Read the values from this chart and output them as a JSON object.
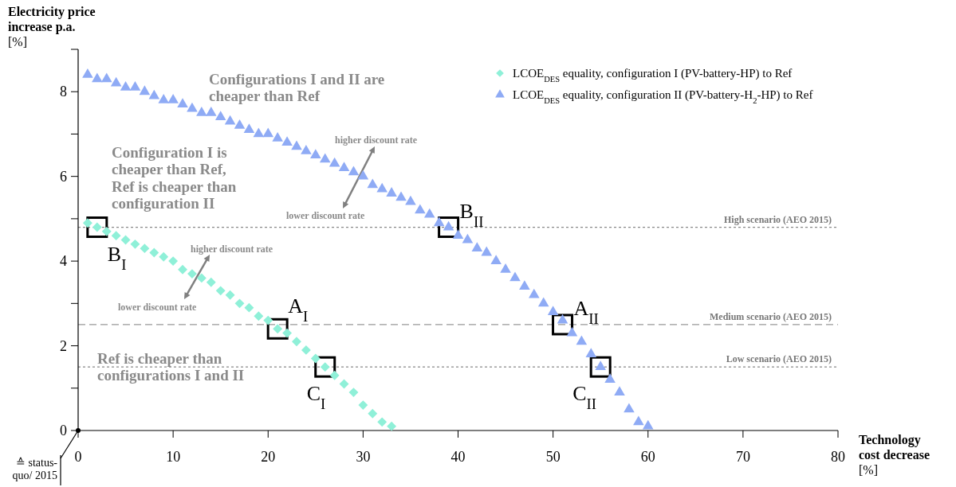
{
  "chart_data": {
    "type": "scatter",
    "xlabel": "Technology cost decrease [%]",
    "ylabel": "Electricity price increase p.a. [%]",
    "xlim": [
      0,
      80
    ],
    "xticks": [
      0,
      10,
      20,
      30,
      40,
      50,
      60,
      70,
      80
    ],
    "ylim": [
      0,
      9
    ],
    "yticks": [
      0,
      {
        "value": 1,
        "label": null
      },
      2,
      {
        "value": 3,
        "label": null
      },
      4,
      {
        "value": 5,
        "label": null
      },
      6,
      {
        "value": 7,
        "label": null
      },
      8,
      {
        "value": 9,
        "label": null
      }
    ],
    "grid": false,
    "legend": "top right",
    "series": [
      {
        "name": "LCOE$_{DES}$ equality, configuration I (PV-battery-HP) to Ref",
        "color": "#8ff0d8",
        "marker": "diamond",
        "x": [
          1,
          2,
          3,
          4,
          5,
          6,
          7,
          8,
          9,
          10,
          11,
          12,
          13,
          14,
          15,
          16,
          17,
          18,
          19,
          20,
          21,
          22,
          23,
          24,
          25,
          26,
          27,
          28,
          29,
          30,
          31,
          32,
          33
        ],
        "values": [
          4.9,
          4.8,
          4.7,
          4.6,
          4.5,
          4.4,
          4.3,
          4.2,
          4.1,
          4.0,
          3.8,
          3.7,
          3.6,
          3.5,
          3.3,
          3.2,
          3.0,
          2.9,
          2.7,
          2.6,
          2.4,
          2.3,
          2.1,
          1.9,
          1.7,
          1.5,
          1.3,
          1.1,
          0.9,
          0.6,
          0.4,
          0.2,
          0.1
        ]
      },
      {
        "name": "LCOE$_{DES}$ equality, configuration II (PV-battery-H$_{2}$-HP) to Ref",
        "color": "#8fabf5",
        "marker": "triangle",
        "x": [
          1,
          2,
          3,
          4,
          5,
          6,
          7,
          8,
          9,
          10,
          11,
          12,
          13,
          14,
          15,
          16,
          17,
          18,
          19,
          20,
          21,
          22,
          23,
          24,
          25,
          26,
          27,
          28,
          29,
          30,
          31,
          32,
          33,
          34,
          35,
          36,
          37,
          38,
          39,
          40,
          41,
          42,
          43,
          44,
          45,
          46,
          47,
          48,
          49,
          50,
          51,
          52,
          53,
          54,
          55,
          56,
          57,
          58,
          59,
          60
        ],
        "values": [
          8.4,
          8.3,
          8.3,
          8.2,
          8.1,
          8.1,
          8.0,
          7.9,
          7.8,
          7.8,
          7.7,
          7.6,
          7.5,
          7.5,
          7.4,
          7.3,
          7.2,
          7.1,
          7.0,
          7.0,
          6.9,
          6.8,
          6.7,
          6.6,
          6.5,
          6.4,
          6.3,
          6.2,
          6.1,
          6.0,
          5.8,
          5.7,
          5.6,
          5.5,
          5.4,
          5.2,
          5.1,
          4.9,
          4.8,
          4.6,
          4.5,
          4.3,
          4.2,
          4.0,
          3.8,
          3.6,
          3.4,
          3.2,
          3.0,
          2.8,
          2.6,
          2.3,
          2.1,
          1.8,
          1.5,
          1.2,
          0.9,
          0.5,
          0.2,
          0.1
        ]
      }
    ],
    "ref_lines": [
      {
        "axis": "y",
        "value": 4.8,
        "label": "High scenario (AEO 2015)",
        "color": "#888888",
        "line_style": "dotted"
      },
      {
        "axis": "y",
        "value": 2.5,
        "label": "Medium scenario (AEO 2015)",
        "color": "#999999",
        "line_style": "dashed"
      },
      {
        "axis": "y",
        "value": 1.5,
        "label": "Low scenario (AEO 2015)",
        "color": "#888888",
        "line_style": "dotted"
      }
    ],
    "annotations": [
      "Configurations I and II are cheaper than Ref",
      "Configuration I is cheaper than Ref, Ref is cheaper than configuration II",
      "Ref is cheaper than configurations I and II",
      "higher discount rate",
      "lower discount rate",
      "higher discount rate",
      "lower discount rate",
      "≙ status-quo/ 2015",
      {
        "text": "B$_{I}$",
        "x": 2,
        "y": 4.8
      },
      {
        "text": "A$_{I}$",
        "x": 21,
        "y": 2.4
      },
      {
        "text": "C$_{I}$",
        "x": 26,
        "y": 1.5
      },
      {
        "text": "B$_{II}$",
        "x": 39,
        "y": 4.8
      },
      {
        "text": "A$_{II}$",
        "x": 51,
        "y": 2.5
      },
      {
        "text": "C$_{II}$",
        "x": 55,
        "y": 1.5
      }
    ]
  }
}
